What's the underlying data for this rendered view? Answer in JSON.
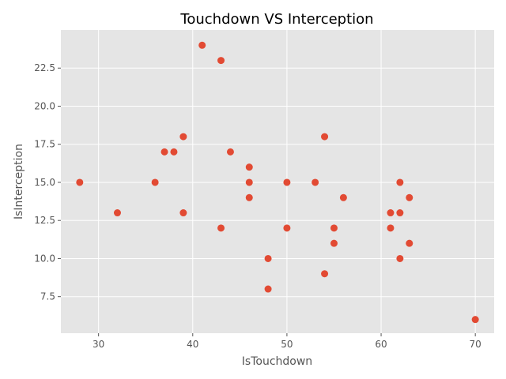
{
  "chart_data": {
    "type": "scatter",
    "title": "Touchdown VS Interception",
    "xlabel": "IsTouchdown",
    "ylabel": "IsInterception",
    "xlim": [
      26,
      72
    ],
    "ylim": [
      5.1,
      25.0
    ],
    "x_ticks": [
      30,
      40,
      50,
      60,
      70
    ],
    "y_ticks": [
      7.5,
      10.0,
      12.5,
      15.0,
      17.5,
      20.0,
      22.5
    ],
    "x_tick_labels": [
      "30",
      "40",
      "50",
      "60",
      "70"
    ],
    "y_tick_labels": [
      "7.5",
      "10.0",
      "12.5",
      "15.0",
      "17.5",
      "20.0",
      "22.5"
    ],
    "grid": true,
    "colors": {
      "plot_background": "#e5e5e5",
      "grid": "#ffffff",
      "marker": "#e24a33"
    },
    "points": [
      {
        "x": 41,
        "y": 24
      },
      {
        "x": 43,
        "y": 23
      },
      {
        "x": 39,
        "y": 18
      },
      {
        "x": 54,
        "y": 18
      },
      {
        "x": 37,
        "y": 17
      },
      {
        "x": 38,
        "y": 17
      },
      {
        "x": 44,
        "y": 17
      },
      {
        "x": 46,
        "y": 16
      },
      {
        "x": 28,
        "y": 15
      },
      {
        "x": 36,
        "y": 15
      },
      {
        "x": 46,
        "y": 15
      },
      {
        "x": 50,
        "y": 15
      },
      {
        "x": 53,
        "y": 15
      },
      {
        "x": 62,
        "y": 15
      },
      {
        "x": 46,
        "y": 14
      },
      {
        "x": 56,
        "y": 14
      },
      {
        "x": 63,
        "y": 14
      },
      {
        "x": 32,
        "y": 13
      },
      {
        "x": 39,
        "y": 13
      },
      {
        "x": 61,
        "y": 13
      },
      {
        "x": 62,
        "y": 13
      },
      {
        "x": 43,
        "y": 12
      },
      {
        "x": 50,
        "y": 12
      },
      {
        "x": 55,
        "y": 12
      },
      {
        "x": 61,
        "y": 12
      },
      {
        "x": 55,
        "y": 11
      },
      {
        "x": 63,
        "y": 11
      },
      {
        "x": 48,
        "y": 10
      },
      {
        "x": 62,
        "y": 10
      },
      {
        "x": 54,
        "y": 9
      },
      {
        "x": 48,
        "y": 8
      },
      {
        "x": 70,
        "y": 6
      }
    ]
  }
}
